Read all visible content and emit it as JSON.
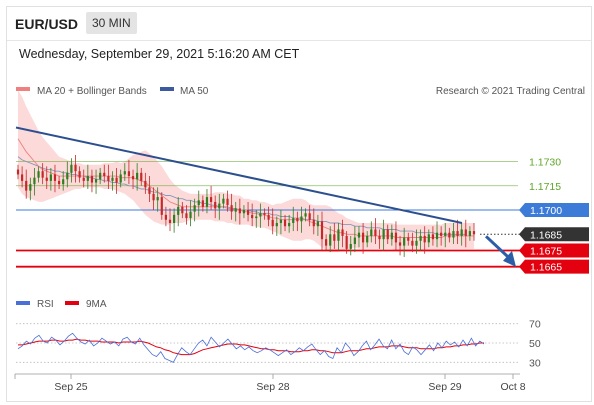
{
  "header": {
    "pair": "EUR/USD",
    "timeframe": "30 MIN"
  },
  "datetime": "Wednesday, September 29, 2021 5:16:20 AM CET",
  "credit": "Research © 2021 Trading Central",
  "colors": {
    "ma20": "#f08080",
    "bollinger": "#fbd4d4",
    "ma50": "#3b5aa0",
    "trend": "#2c4f8f",
    "green": "#5fa62a",
    "blue": "#3d7bd9",
    "red": "#e3000f",
    "price_line": "#333333",
    "rsi": "#4a6fd8",
    "rsi_ma": "#e3000f",
    "candle_up": "#2e7d1e",
    "candle_down": "#c62828"
  },
  "chart_data": [
    {
      "type": "candlestick",
      "title": "",
      "legend": [
        {
          "name": "MA 20 + Bollinger Bands",
          "color": "#f08080"
        },
        {
          "name": "MA 50",
          "color": "#3b5aa0"
        }
      ],
      "x_ticks": [
        "Sep 25",
        "Sep 28",
        "Sep 29",
        "Oct 8"
      ],
      "levels": [
        {
          "label": "1.1730",
          "value": 1.173,
          "style": "green"
        },
        {
          "label": "1.1715",
          "value": 1.1715,
          "style": "green"
        },
        {
          "label": "1.1700",
          "value": 1.17,
          "style": "blue"
        },
        {
          "label": "1.1685",
          "value": 1.1685,
          "style": "price"
        },
        {
          "label": "1.1675",
          "value": 1.1675,
          "style": "red"
        },
        {
          "label": "1.1665",
          "value": 1.1665,
          "style": "red"
        }
      ],
      "current_price": 1.1685,
      "trendline": {
        "from": 1.1751,
        "to": 1.1692
      },
      "closes": [
        1.1722,
        1.1718,
        1.1712,
        1.1716,
        1.172,
        1.1724,
        1.172,
        1.1718,
        1.1722,
        1.1718,
        1.1716,
        1.1719,
        1.1723,
        1.1728,
        1.1724,
        1.172,
        1.1718,
        1.1721,
        1.1717,
        1.1719,
        1.1723,
        1.1721,
        1.1718,
        1.172,
        1.1717,
        1.1722,
        1.1724,
        1.1721,
        1.1719,
        1.1723,
        1.1718,
        1.1714,
        1.171,
        1.1706,
        1.1708,
        1.1697,
        1.1694,
        1.1692,
        1.1697,
        1.1702,
        1.1698,
        1.1695,
        1.1699,
        1.1703,
        1.1706,
        1.1702,
        1.1708,
        1.1705,
        1.1701,
        1.1704,
        1.1707,
        1.1703,
        1.1699,
        1.1701,
        1.1698,
        1.17,
        1.1697,
        1.1695,
        1.1696,
        1.1698,
        1.1697,
        1.1694,
        1.169,
        1.1692,
        1.1694,
        1.169,
        1.1692,
        1.1695,
        1.1693,
        1.1696,
        1.1698,
        1.1694,
        1.169,
        1.1693,
        1.1682,
        1.1678,
        1.1685,
        1.1681,
        1.1688,
        1.1684,
        1.1676,
        1.1679,
        1.1683,
        1.1686,
        1.168,
        1.1684,
        1.1688,
        1.1684,
        1.1682,
        1.1688,
        1.1682,
        1.1686,
        1.168,
        1.1678,
        1.1683,
        1.1681,
        1.1678,
        1.1681,
        1.1684,
        1.168,
        1.1685,
        1.1682,
        1.1686,
        1.1684,
        1.1686,
        1.1683,
        1.1687,
        1.1684,
        1.1688,
        1.1684,
        1.1687,
        1.1685
      ],
      "ma20": [
        1.1744,
        1.174,
        1.1736,
        1.1733,
        1.173,
        1.1727,
        1.1725,
        1.1724,
        1.1723,
        1.1722,
        1.1721,
        1.1721,
        1.1721,
        1.1721,
        1.1721,
        1.1721,
        1.1721,
        1.1721,
        1.1721,
        1.1721,
        1.1721,
        1.1721,
        1.1721,
        1.1721,
        1.1721,
        1.172,
        1.172,
        1.172,
        1.172,
        1.1719,
        1.1718,
        1.1717,
        1.1715,
        1.1713,
        1.1711,
        1.1709,
        1.1707,
        1.1705,
        1.1704,
        1.1703,
        1.1702,
        1.1702,
        1.1702,
        1.1702,
        1.1702,
        1.1702,
        1.1702,
        1.1702,
        1.1702,
        1.1702,
        1.1702,
        1.1701,
        1.1701,
        1.17,
        1.17,
        1.1699,
        1.1699,
        1.1698,
        1.1698,
        1.1697,
        1.1697,
        1.1696,
        1.1695,
        1.1695,
        1.1694,
        1.1694,
        1.1694,
        1.1694,
        1.1694,
        1.1694,
        1.1694,
        1.1693,
        1.1692,
        1.1691,
        1.169,
        1.1689,
        1.1688,
        1.1687,
        1.1686,
        1.1686,
        1.1685,
        1.1685,
        1.1685,
        1.1684,
        1.1684,
        1.1684,
        1.1684,
        1.1684,
        1.1684,
        1.1684,
        1.1684,
        1.1684,
        1.1683,
        1.1683,
        1.1683,
        1.1683,
        1.1683,
        1.1683,
        1.1683,
        1.1683,
        1.1683,
        1.1683,
        1.1683,
        1.1683,
        1.1684,
        1.1684,
        1.1684,
        1.1684,
        1.1684,
        1.1684,
        1.1684,
        1.1684
      ],
      "ma50": [
        1.1733,
        1.1731,
        1.173,
        1.1729,
        1.1728,
        1.1727,
        1.1726,
        1.1725,
        1.1725,
        1.1724,
        1.1724,
        1.1723,
        1.1723,
        1.1722,
        1.1722,
        1.1721,
        1.1721,
        1.172,
        1.172,
        1.1719,
        1.1719,
        1.1718,
        1.1718,
        1.1717,
        1.1717,
        1.1716,
        1.1716,
        1.1715,
        1.1715,
        1.1714,
        1.1713,
        1.1713,
        1.1712,
        1.1711,
        1.1711,
        1.171,
        1.1709,
        1.1709,
        1.1708,
        1.1707,
        1.1707,
        1.1706,
        1.1706,
        1.1705,
        1.1705,
        1.1704,
        1.1704,
        1.1703,
        1.1703,
        1.1702,
        1.1702,
        1.1702,
        1.1701,
        1.1701,
        1.17,
        1.17,
        1.17,
        1.1699,
        1.1699,
        1.1698,
        1.1698,
        1.1698,
        1.1697,
        1.1697,
        1.1696,
        1.1696,
        1.1696,
        1.1695,
        1.1695,
        1.1695,
        1.1694,
        1.1694,
        1.1694,
        1.1693,
        1.1693,
        1.1693,
        1.1692,
        1.1692,
        1.1692,
        1.1691,
        1.1691,
        1.1691,
        1.169,
        1.169,
        1.169,
        1.1689,
        1.1689,
        1.1689,
        1.1689,
        1.1688,
        1.1688,
        1.1688,
        1.1688,
        1.1687,
        1.1687,
        1.1687,
        1.1687,
        1.1686,
        1.1686,
        1.1686,
        1.1686,
        1.1686,
        1.1685,
        1.1685,
        1.1685,
        1.1685,
        1.1685,
        1.1685,
        1.1685,
        1.1685
      ],
      "bb_width": [
        0.003,
        0.003,
        0.0028,
        0.0026,
        0.0024,
        0.0022,
        0.002,
        0.0018,
        0.0016,
        0.0014,
        0.0012,
        0.0011,
        0.001,
        0.0009,
        0.0008,
        0.0008,
        0.0007,
        0.0007,
        0.0007,
        0.0007,
        0.0007,
        0.0008,
        0.0008,
        0.0008,
        0.0009,
        0.0009,
        0.001,
        0.0012,
        0.0014,
        0.0016,
        0.0018,
        0.002,
        0.002,
        0.002,
        0.0019,
        0.0018,
        0.0016,
        0.0014,
        0.0012,
        0.0011,
        0.001,
        0.0009,
        0.0008,
        0.0008,
        0.0008,
        0.0008,
        0.0008,
        0.0008,
        0.0009,
        0.0009,
        0.0009,
        0.0009,
        0.0009,
        0.0009,
        0.0009,
        0.0008,
        0.0008,
        0.0008,
        0.0008,
        0.0008,
        0.0008,
        0.0008,
        0.0008,
        0.0009,
        0.001,
        0.0011,
        0.0012,
        0.0013,
        0.0013,
        0.0013,
        0.0012,
        0.0011,
        0.0011,
        0.0012,
        0.0013,
        0.0014,
        0.0014,
        0.0013,
        0.0012,
        0.0011,
        0.001,
        0.0009,
        0.0008,
        0.0008,
        0.0008,
        0.0008,
        0.0008,
        0.0008,
        0.0008,
        0.0008,
        0.0008,
        0.0008,
        0.0008,
        0.0008,
        0.0008,
        0.0008,
        0.0008,
        0.0008,
        0.0008,
        0.0008,
        0.0008,
        0.0008,
        0.0008,
        0.0008,
        0.0008,
        0.0008,
        0.0008,
        0.0008,
        0.0008,
        0.0008,
        0.0008,
        0.0008
      ],
      "ylim": [
        1.1658,
        1.1768
      ]
    },
    {
      "type": "line",
      "title": "",
      "legend": [
        {
          "name": "RSI",
          "color": "#4a6fd8"
        },
        {
          "name": "9MA",
          "color": "#e3000f"
        }
      ],
      "y_ticks": [
        70,
        50,
        30
      ],
      "ylim": [
        20,
        80
      ],
      "rsi": [
        44,
        47,
        52,
        49,
        55,
        58,
        52,
        50,
        56,
        53,
        48,
        52,
        57,
        60,
        55,
        51,
        49,
        53,
        47,
        50,
        55,
        52,
        49,
        51,
        47,
        54,
        56,
        51,
        49,
        55,
        48,
        43,
        38,
        36,
        41,
        34,
        32,
        30,
        38,
        45,
        41,
        38,
        44,
        50,
        53,
        47,
        56,
        51,
        46,
        50,
        54,
        49,
        44,
        47,
        43,
        46,
        42,
        40,
        42,
        45,
        43,
        40,
        37,
        40,
        43,
        38,
        41,
        45,
        42,
        46,
        49,
        43,
        38,
        42,
        36,
        34,
        45,
        40,
        50,
        45,
        37,
        41,
        47,
        52,
        43,
        48,
        54,
        47,
        44,
        53,
        44,
        49,
        41,
        38,
        46,
        43,
        38,
        43,
        48,
        42,
        50,
        45,
        52,
        48,
        51,
        46,
        53,
        47,
        55,
        47,
        52,
        49
      ],
      "rsi_ma": [
        48,
        48,
        49,
        50,
        51,
        52,
        52,
        52,
        53,
        53,
        52,
        52,
        53,
        53,
        54,
        53,
        53,
        52,
        52,
        52,
        51,
        51,
        51,
        51,
        50,
        51,
        51,
        51,
        51,
        52,
        51,
        50,
        48,
        46,
        45,
        43,
        42,
        40,
        39,
        38,
        38,
        38,
        39,
        41,
        43,
        44,
        45,
        46,
        47,
        48,
        49,
        49,
        49,
        48,
        48,
        47,
        46,
        45,
        44,
        44,
        43,
        43,
        42,
        42,
        42,
        41,
        41,
        41,
        42,
        42,
        43,
        43,
        42,
        42,
        41,
        40,
        40,
        40,
        41,
        42,
        42,
        42,
        43,
        44,
        44,
        45,
        46,
        46,
        46,
        47,
        47,
        47,
        46,
        45,
        45,
        45,
        44,
        44,
        44,
        44,
        45,
        45,
        46,
        46,
        47,
        47,
        48,
        48,
        49,
        49,
        50,
        50
      ]
    }
  ]
}
